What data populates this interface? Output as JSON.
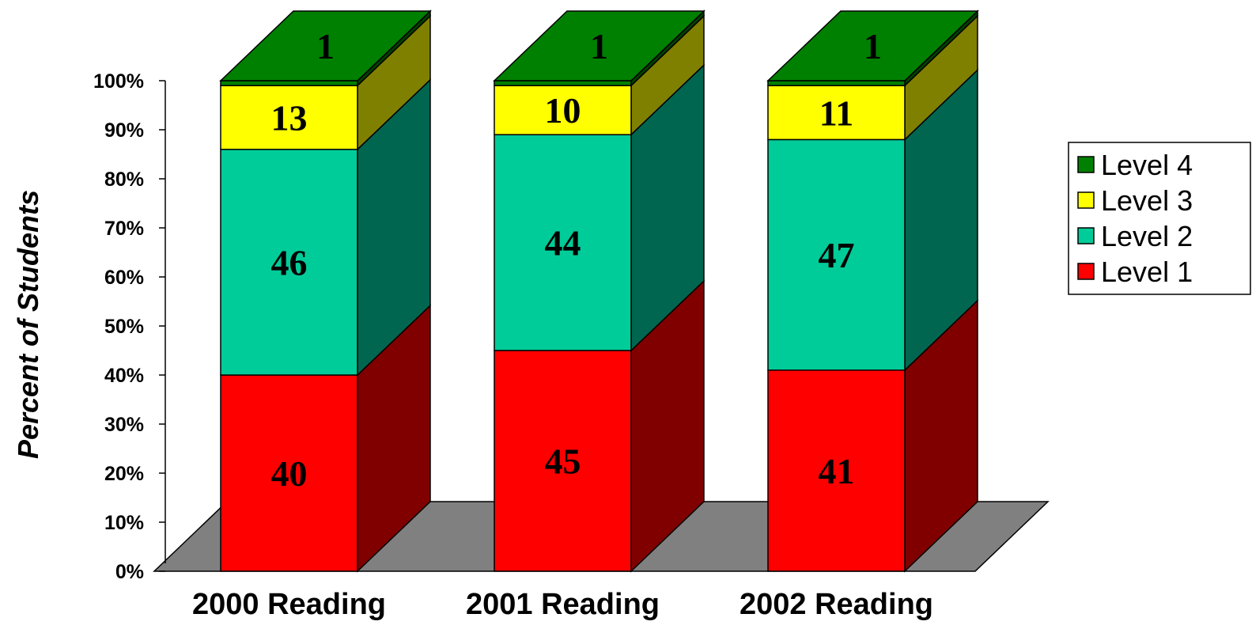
{
  "chart_data": {
    "type": "bar",
    "stacked": true,
    "three_d": true,
    "categories": [
      "2000 Reading",
      "2001 Reading",
      "2002 Reading"
    ],
    "series": [
      {
        "name": "Level 1",
        "values": [
          40,
          45,
          41
        ],
        "color": "#ff0000",
        "side_color": "#800000"
      },
      {
        "name": "Level 2",
        "values": [
          46,
          44,
          47
        ],
        "color": "#00cc99",
        "side_color": "#006650"
      },
      {
        "name": "Level 3",
        "values": [
          13,
          10,
          11
        ],
        "color": "#ffff00",
        "side_color": "#808000"
      },
      {
        "name": "Level 4",
        "values": [
          1,
          1,
          1
        ],
        "color": "#008000",
        "side_color": "#004000"
      }
    ],
    "data_labels": true,
    "ylabel": "Percent of Students",
    "xlabel": "",
    "yticks": [
      "0%",
      "10%",
      "20%",
      "30%",
      "40%",
      "50%",
      "60%",
      "70%",
      "80%",
      "90%",
      "100%"
    ],
    "ylim": [
      0,
      100
    ],
    "floor_color": "#808080",
    "legend_position": "right",
    "legend_order": [
      "Level 4",
      "Level 3",
      "Level 2",
      "Level 1"
    ]
  }
}
